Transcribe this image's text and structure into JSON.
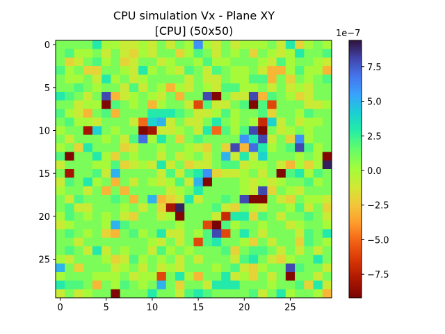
{
  "chart_data": {
    "type": "heatmap",
    "title": "CPU simulation Vx - Plane XY",
    "subtitle": "[CPU] (50x50)",
    "xlabel": "",
    "ylabel": "",
    "grid": false,
    "x_ticks": [
      "0",
      "5",
      "10",
      "15",
      "20",
      "25"
    ],
    "y_ticks": [
      "0",
      "5",
      "10",
      "15",
      "20",
      "25"
    ],
    "x_range": [
      -0.5,
      29.5
    ],
    "y_range": [
      -0.5,
      29.5
    ],
    "colorbar": {
      "colormap": "turbo",
      "multiplier_label": "1e−7",
      "vmin": -9.2,
      "vmax": 9.4,
      "tick_values": [
        -7.5,
        -5.0,
        -2.5,
        0.0,
        2.5,
        5.0,
        7.5
      ],
      "tick_labels": [
        "−7.5",
        "−5.0",
        "−2.5",
        "0.0",
        "2.5",
        "5.0",
        "7.5"
      ]
    },
    "cell_scale": "1e-7",
    "rows": [
      "1 1 1 1 3 0 0 -1 -1 0 -1 1 -1 1 0 6 0 -1 1 -1 0 0 0 1 -1 3 -2 0 1 0",
      "1 2 0 0 1 -1 1 -1 -2 0 -1 1 1 -2 0 2 1 -1 1 0 1 -2 1 0 -1 0 3 1 1 2",
      "1 -2 -1 1 2 0 1 -2 -1 1 1 -1 0 1 1 0 2 0 0 1 1 1 0 -1 2 0 1 1 0 -1",
      "2 0 1 -2 -2 1 1 0 -1 3 0 1 0 -1 2 1 -1 2 1 0 0 1 -1 -3 -3 0 2 0 0 -3",
      "1 0 0 1 -1 3 0 1 -1 0 1 1 1 1 -1 1 -1 -1 1 0 0 2 2 -3 1 -2 1 0 1 2",
      "1 1 2 1 0 1 1 -1 2 -1 1 0 -3 0 -1 1 0 -1 2 2 0 0 1 -1 1 -1 0 -1 1 1",
      "3 2 1 -1 1 8 -3 -1 0 1 0 -1 1 -3 1 1 8 -9 1 -1 -1 8 -3 2 1 0 -2 -1 1 1",
      "1 1 -1 0 0 -9 2 1 0 1 -3 0 1 1 -1 -6 2 -1 -1 1 2 -9 2 -6 1 1 1 -1 -1 0",
      "2 0 -1 -3 1 2 -3 1 1 1 3 3 3 2 1 -1 -1 0 2 0 1 1 2 -2 1 1 0 2 1 1",
      "1 2 0 0 -1 1 1 1 -1 -5 4 5 -1 1 -1 -1 1 3 1 0 1 0 -7 4 -1 1 -1 0 0 1",
      "0 1 1 -8 4 1 0 1 1 -9 -8 -1 -1 0 1 -1 3 -5 2 0 2 8 -9 1 -1 0 1 0 1 1",
      "1 -1 1 1 1 0 1 -1 2 7 0 3 1 -2 1 2 1 1 1 1 6 3 8 -1 1 -2 6 0 1 1",
      "0 1 -2 3 1 1 1 -2 -1 1 1 0 1 1 0 -1 -2 1 -2 8 -3 7 3 0 1 2 8 2 0 1",
      "2 -9 1 1 3 0 -2 1 0 1 1 -1 1 -1 0 1 -1 1 5 -1 3 -1 4 1 1 1 0 1 0 -9",
      "-1 1 1 1 0 0 2 -2 -1 0 -1 3 -1 1 -2 -1 -1 1 2 2 -1 0 0 1 -1 -3 0 -2 0 9",
      "1 -8 1 1 2 -1 5 1 1 1 1 -1 2 -1 2 3 6 -2 -1 -1 0 1 -1 1 -9 2 3 0 2 1",
      "-1 2 1 3 0 1 -3 1 -1 1 0 -1 0 2 -1 5 -9 1 1 1 0 -1 0 -1 0 1 1 2 0 1",
      "0 1 1 -1 1 -3 1 -3 1 1 1 1 -1 0 1 3 1 1 1 1 0 -1 8 -2 1 0 -1 1 1 1",
      "1 -1 2 1 1 1 2 1 -3 1 5 -3 -2 -1 3 -1 1 1 2 1 8 -9 -9 1 -1 -2 1 0 0 -1",
      "1 2 -1 -1 1 1 1 0 1 -1 1 -2 -8 9 1 1 1 2 -1 -2 1 0 -1 1 1 0 2 -1 1 -2",
      "0 2 1 0 1 0 1 -1 -2 1 1 -1 0 -9 1 1 1 -1 -7 3 3 -2 2 1 -1 1 1 2 1 -1",
      "-1 0 1 1 1 0 5 2 1 1 1 1 1 0 1 1 -6 -10 2 0 1 1 0 1 1 -1 0 1 1 0",
      "1 2 1 0 1 -2 -3 1 2 0 1 3 -1 -1 1 0 2 8 -6 1 3 1 -1 1 1 1 -1 2 1 3",
      "1 1 -1 1 1 1 1 1 1 1 0 -1 1 -1 1 -6 2 3 1 1 0 -2 1 -1 1 1 -2 2 1 0",
      "1 2 1 -1 3 -1 1 0 1 1 -1 2 0 1 0 1 1 1 2 -2 1 2 2 1 -1 1 -1 1 -1 1",
      "0 -1 1 1 1 0 -2 -1 2 0 1 0 1 -1 1 -1 1 1 1 -1 2 3 1 -1 -2 0 1 1 3 1",
      "5 1 -2 1 1 1 -1 0 1 -1 1 -1 0 -1 1 1 1 0 1 2 -1 -2 0 1 1 8 2 1 1 -1",
      "0 1 1 1 0 0 0 1 -1 0 0 -6 1 3 0 -3 1 1 3 -1 0 -2 1 -1 1 -9 1 1 -1 1",
      "3 2 2 1 -3 1 0 2 1 0 1 5 1 -2 1 1 -1 3 3 3 1 1 1 0 1 1 2 -2 3 -1",
      "-1 1 -1 0 1 1 -9 1 1 1 3 1 1 -1 2 3 2 1 1 1 1 2 -1 1 3 0 1 1 0 -3"
    ]
  }
}
